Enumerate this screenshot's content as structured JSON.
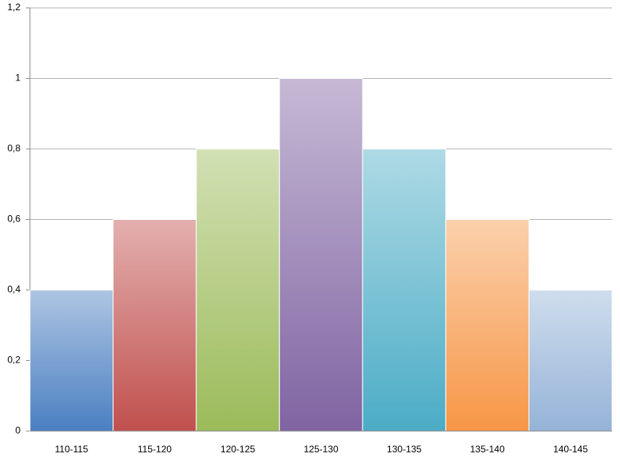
{
  "chart_data": {
    "type": "bar",
    "categories": [
      "110-115",
      "115-120",
      "120-125",
      "125-130",
      "130-135",
      "135-140",
      "140-145"
    ],
    "values": [
      0.4,
      0.6,
      0.8,
      1,
      0.8,
      0.6,
      0.4
    ],
    "colors": [
      "#4a7fc1",
      "#c0504d",
      "#9bbb59",
      "#8064a2",
      "#4bacc6",
      "#f79646",
      "#95b3d7"
    ],
    "ylim": [
      0,
      1.2
    ],
    "yticks": [
      0,
      {
        "value": 0.2,
        "label": "0,2"
      },
      {
        "value": 0.4,
        "label": "0,4"
      },
      {
        "value": 0.6,
        "label": "0,6"
      },
      {
        "value": 0.8,
        "label": "0,8"
      },
      1,
      {
        "value": 1.2,
        "label": "1,2"
      }
    ],
    "grid": true
  }
}
